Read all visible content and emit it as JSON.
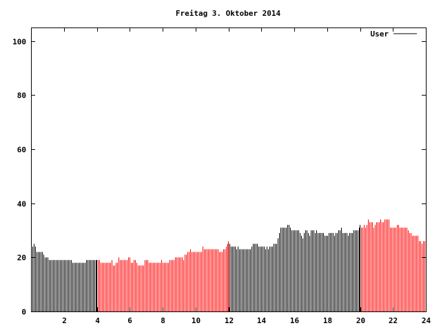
{
  "chart_data": {
    "type": "bar",
    "title": "Freitag 3. Oktober 2014",
    "xlabel": "",
    "ylabel": "",
    "xlim": [
      0,
      24
    ],
    "ylim": [
      0,
      105
    ],
    "x_ticks": [
      2,
      4,
      6,
      8,
      10,
      12,
      14,
      16,
      18,
      20,
      22,
      24
    ],
    "y_ticks": [
      0,
      20,
      40,
      60,
      80,
      100
    ],
    "x_step_hours": 0.0833333,
    "legend": {
      "position": "top-right",
      "entries": [
        "User"
      ]
    },
    "colors": {
      "day": "#000000",
      "highlight": "#ff0000",
      "axis": "#000000"
    },
    "highlight_ranges": [
      [
        4,
        12
      ],
      [
        20,
        24
      ]
    ],
    "series": [
      {
        "name": "User",
        "values": [
          25,
          24,
          25,
          24,
          22,
          22,
          22,
          22,
          22,
          21,
          20,
          20,
          20,
          19,
          19,
          19,
          19,
          19,
          19,
          19,
          19,
          19,
          19,
          19,
          19,
          19,
          19,
          19,
          19,
          19,
          18,
          18,
          18,
          18,
          18,
          18,
          18,
          18,
          18,
          18,
          19,
          19,
          19,
          19,
          19,
          19,
          19,
          19,
          19,
          19,
          19,
          18,
          18,
          18,
          18,
          18,
          18,
          18,
          18,
          19,
          17,
          17,
          18,
          18,
          20,
          19,
          19,
          19,
          19,
          19,
          19,
          20,
          20,
          18,
          18,
          19,
          19,
          18,
          17,
          17,
          17,
          17,
          17,
          19,
          19,
          19,
          18,
          18,
          18,
          18,
          18,
          18,
          18,
          18,
          18,
          19,
          18,
          18,
          18,
          18,
          18,
          19,
          19,
          19,
          19,
          20,
          20,
          20,
          20,
          20,
          20,
          19,
          21,
          21,
          22,
          22,
          23,
          22,
          22,
          22,
          22,
          22,
          22,
          22,
          22,
          24,
          23,
          23,
          23,
          23,
          23,
          23,
          23,
          23,
          23,
          23,
          23,
          22,
          22,
          22,
          23,
          23,
          24,
          25,
          26,
          25,
          24,
          24,
          24,
          24,
          23,
          24,
          23,
          23,
          23,
          23,
          23,
          23,
          23,
          23,
          23,
          24,
          25,
          25,
          25,
          25,
          24,
          24,
          24,
          24,
          24,
          23,
          24,
          23,
          24,
          24,
          24,
          25,
          25,
          25,
          27,
          29,
          31,
          31,
          31,
          31,
          31,
          32,
          32,
          31,
          30,
          30,
          30,
          30,
          30,
          30,
          29,
          28,
          27,
          29,
          30,
          30,
          29,
          28,
          30,
          30,
          30,
          29,
          30,
          29,
          29,
          29,
          29,
          29,
          28,
          28,
          28,
          29,
          29,
          29,
          29,
          28,
          29,
          29,
          30,
          30,
          31,
          29,
          29,
          29,
          29,
          28,
          29,
          29,
          29,
          30,
          30,
          30,
          30,
          31,
          32,
          31,
          31,
          32,
          31,
          32,
          34,
          33,
          33,
          33,
          31,
          32,
          33,
          33,
          33,
          34,
          33,
          33,
          34,
          34,
          34,
          34,
          31,
          31,
          31,
          31,
          31,
          32,
          32,
          31,
          31,
          31,
          31,
          31,
          31,
          30,
          29,
          29,
          28,
          28,
          28,
          28,
          28,
          26,
          26,
          25,
          26,
          26
        ]
      }
    ]
  }
}
